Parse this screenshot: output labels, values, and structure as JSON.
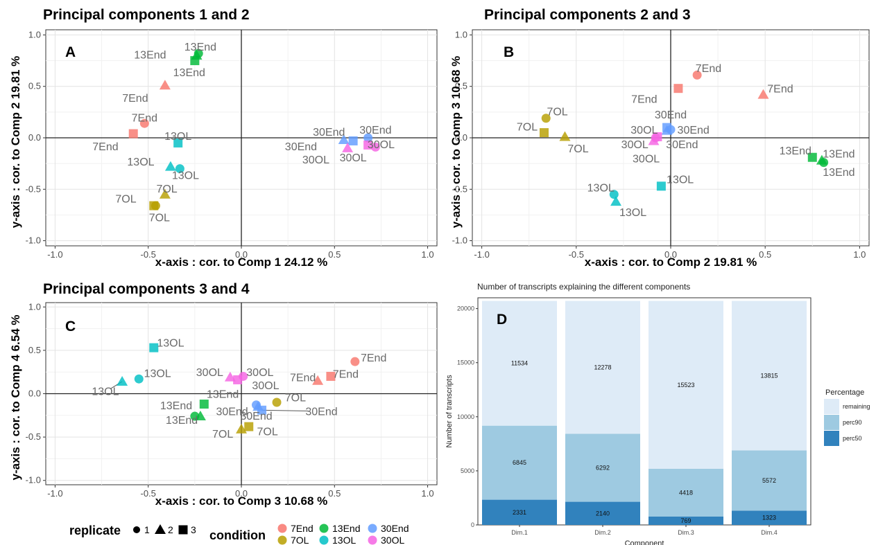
{
  "colors": {
    "7End": "#F8766D",
    "7OL": "#B79F00",
    "13End": "#00BA38",
    "13OL": "#00BFC4",
    "30End": "#619CFF",
    "30OL": "#F564E3",
    "perc50": "#3182BD",
    "perc90": "#9ECAE1",
    "remaining": "#DEEBF7"
  },
  "chart_data": [
    {
      "type": "scatter",
      "panel": "A",
      "title": "Principal components 1 and 2",
      "xlabel": "x-axis : cor. to Comp  1   24.12 %",
      "ylabel": "y-axis : cor. to Comp  2   19.81 %",
      "xlim": [
        -1.05,
        1.05
      ],
      "ylim": [
        -1.05,
        1.05
      ],
      "xticks": [
        "-1.0",
        "-0.5",
        "0.0",
        "0.5",
        "1.0"
      ],
      "yticks": [
        "-1.0",
        "-0.5",
        "0.0",
        "0.5",
        "1.0"
      ],
      "grid": true,
      "points": [
        {
          "condition": "7End",
          "replicate": 1,
          "x": -0.52,
          "y": 0.14
        },
        {
          "condition": "7End",
          "replicate": 2,
          "x": -0.41,
          "y": 0.51
        },
        {
          "condition": "7End",
          "replicate": 3,
          "x": -0.58,
          "y": 0.04
        },
        {
          "condition": "13End",
          "replicate": 1,
          "x": -0.23,
          "y": 0.82
        },
        {
          "condition": "13End",
          "replicate": 2,
          "x": -0.24,
          "y": 0.8
        },
        {
          "condition": "13End",
          "replicate": 3,
          "x": -0.25,
          "y": 0.75
        },
        {
          "condition": "13OL",
          "replicate": 1,
          "x": -0.33,
          "y": -0.3
        },
        {
          "condition": "13OL",
          "replicate": 2,
          "x": -0.38,
          "y": -0.28
        },
        {
          "condition": "13OL",
          "replicate": 3,
          "x": -0.34,
          "y": -0.05
        },
        {
          "condition": "7OL",
          "replicate": 1,
          "x": -0.46,
          "y": -0.66
        },
        {
          "condition": "7OL",
          "replicate": 2,
          "x": -0.41,
          "y": -0.55
        },
        {
          "condition": "7OL",
          "replicate": 3,
          "x": -0.47,
          "y": -0.66
        },
        {
          "condition": "30End",
          "replicate": 1,
          "x": 0.68,
          "y": 0.0
        },
        {
          "condition": "30End",
          "replicate": 2,
          "x": 0.55,
          "y": -0.02
        },
        {
          "condition": "30End",
          "replicate": 3,
          "x": 0.6,
          "y": -0.03
        },
        {
          "condition": "30OL",
          "replicate": 1,
          "x": 0.72,
          "y": -0.09
        },
        {
          "condition": "30OL",
          "replicate": 2,
          "x": 0.57,
          "y": -0.1
        },
        {
          "condition": "30OL",
          "replicate": 3,
          "x": 0.68,
          "y": -0.07
        }
      ],
      "labels": [
        {
          "text": "13End",
          "x": -0.22,
          "y": 0.89
        },
        {
          "text": "13End",
          "x": -0.49,
          "y": 0.81
        },
        {
          "text": "13End",
          "x": -0.28,
          "y": 0.64
        },
        {
          "text": "7End",
          "x": -0.57,
          "y": 0.39
        },
        {
          "text": "7End",
          "x": -0.52,
          "y": 0.2
        },
        {
          "text": "7End",
          "x": -0.73,
          "y": -0.08
        },
        {
          "text": "13OL",
          "x": -0.34,
          "y": 0.02
        },
        {
          "text": "13OL",
          "x": -0.54,
          "y": -0.23
        },
        {
          "text": "13OL",
          "x": -0.3,
          "y": -0.36
        },
        {
          "text": "7OL",
          "x": -0.4,
          "y": -0.49
        },
        {
          "text": "7OL",
          "x": -0.62,
          "y": -0.59
        },
        {
          "text": "7OL",
          "x": -0.44,
          "y": -0.77
        },
        {
          "text": "30End",
          "x": 0.47,
          "y": 0.06
        },
        {
          "text": "30End",
          "x": 0.72,
          "y": 0.08
        },
        {
          "text": "30End",
          "x": 0.32,
          "y": -0.08
        },
        {
          "text": "30OL",
          "x": 0.75,
          "y": -0.06
        },
        {
          "text": "30OL",
          "x": 0.4,
          "y": -0.21
        },
        {
          "text": "30OL",
          "x": 0.6,
          "y": -0.19
        }
      ]
    },
    {
      "type": "scatter",
      "panel": "B",
      "title": "Principal components 2 and 3",
      "xlabel": "x-axis : cor. to Comp  2   19.81 %",
      "ylabel": "y-axis : cor. to Comp  3   10.68 %",
      "xlim": [
        -1.05,
        1.05
      ],
      "ylim": [
        -1.05,
        1.05
      ],
      "xticks": [
        "-1.0",
        "-0.5",
        "0.0",
        "0.5",
        "1.0"
      ],
      "yticks": [
        "-1.0",
        "-0.5",
        "0.0",
        "0.5",
        "1.0"
      ],
      "grid": true,
      "points": [
        {
          "condition": "7End",
          "replicate": 1,
          "x": 0.14,
          "y": 0.61
        },
        {
          "condition": "7End",
          "replicate": 2,
          "x": 0.49,
          "y": 0.42
        },
        {
          "condition": "7End",
          "replicate": 3,
          "x": 0.04,
          "y": 0.48
        },
        {
          "condition": "7OL",
          "replicate": 1,
          "x": -0.66,
          "y": 0.19
        },
        {
          "condition": "7OL",
          "replicate": 2,
          "x": -0.56,
          "y": 0.01
        },
        {
          "condition": "7OL",
          "replicate": 3,
          "x": -0.67,
          "y": 0.05
        },
        {
          "condition": "30End",
          "replicate": 1,
          "x": 0.0,
          "y": 0.08
        },
        {
          "condition": "30End",
          "replicate": 2,
          "x": -0.02,
          "y": 0.07
        },
        {
          "condition": "30End",
          "replicate": 3,
          "x": -0.02,
          "y": 0.1
        },
        {
          "condition": "30OL",
          "replicate": 1,
          "x": -0.08,
          "y": 0.0
        },
        {
          "condition": "30OL",
          "replicate": 2,
          "x": -0.09,
          "y": -0.03
        },
        {
          "condition": "30OL",
          "replicate": 3,
          "x": -0.07,
          "y": 0.01
        },
        {
          "condition": "13End",
          "replicate": 1,
          "x": 0.81,
          "y": -0.24
        },
        {
          "condition": "13End",
          "replicate": 2,
          "x": 0.8,
          "y": -0.22
        },
        {
          "condition": "13End",
          "replicate": 3,
          "x": 0.75,
          "y": -0.19
        },
        {
          "condition": "13OL",
          "replicate": 1,
          "x": -0.3,
          "y": -0.55
        },
        {
          "condition": "13OL",
          "replicate": 2,
          "x": -0.29,
          "y": -0.62
        },
        {
          "condition": "13OL",
          "replicate": 3,
          "x": -0.05,
          "y": -0.47
        }
      ],
      "labels": [
        {
          "text": "7End",
          "x": 0.2,
          "y": 0.68
        },
        {
          "text": "7End",
          "x": 0.58,
          "y": 0.48
        },
        {
          "text": "7End",
          "x": -0.14,
          "y": 0.38
        },
        {
          "text": "7OL",
          "x": -0.6,
          "y": 0.26
        },
        {
          "text": "7OL",
          "x": -0.76,
          "y": 0.11
        },
        {
          "text": "7OL",
          "x": -0.49,
          "y": -0.1
        },
        {
          "text": "30End",
          "x": 0.0,
          "y": 0.23
        },
        {
          "text": "30OL",
          "x": -0.14,
          "y": 0.08
        },
        {
          "text": "30End",
          "x": 0.12,
          "y": 0.08
        },
        {
          "text": "30OL",
          "x": -0.19,
          "y": -0.06
        },
        {
          "text": "30End",
          "x": 0.06,
          "y": -0.06
        },
        {
          "text": "30OL",
          "x": -0.13,
          "y": -0.2
        },
        {
          "text": "13End",
          "x": 0.66,
          "y": -0.12
        },
        {
          "text": "13End",
          "x": 0.89,
          "y": -0.15
        },
        {
          "text": "13End",
          "x": 0.89,
          "y": -0.33
        },
        {
          "text": "13OL",
          "x": -0.37,
          "y": -0.48
        },
        {
          "text": "13OL",
          "x": 0.05,
          "y": -0.4
        },
        {
          "text": "13OL",
          "x": -0.2,
          "y": -0.72
        }
      ]
    },
    {
      "type": "scatter",
      "panel": "C",
      "title": "Principal components 3 and 4",
      "xlabel": "x-axis : cor. to Comp  3   10.68 %",
      "ylabel": "y-axis : cor. to Comp  4   6.54 %",
      "xlim": [
        -1.05,
        1.05
      ],
      "ylim": [
        -1.05,
        1.05
      ],
      "xticks": [
        "-1.0",
        "-0.5",
        "0.0",
        "0.5",
        "1.0"
      ],
      "yticks": [
        "-1.0",
        "-0.5",
        "0.0",
        "0.5",
        "1.0"
      ],
      "grid": true,
      "points": [
        {
          "condition": "13OL",
          "replicate": 1,
          "x": -0.55,
          "y": 0.17
        },
        {
          "condition": "13OL",
          "replicate": 2,
          "x": -0.64,
          "y": 0.14
        },
        {
          "condition": "13OL",
          "replicate": 3,
          "x": -0.47,
          "y": 0.53
        },
        {
          "condition": "7End",
          "replicate": 1,
          "x": 0.61,
          "y": 0.37
        },
        {
          "condition": "7End",
          "replicate": 2,
          "x": 0.41,
          "y": 0.15
        },
        {
          "condition": "7End",
          "replicate": 3,
          "x": 0.48,
          "y": 0.2
        },
        {
          "condition": "30OL",
          "replicate": 1,
          "x": 0.01,
          "y": 0.2
        },
        {
          "condition": "30OL",
          "replicate": 2,
          "x": -0.06,
          "y": 0.19
        },
        {
          "condition": "30OL",
          "replicate": 3,
          "x": -0.02,
          "y": 0.16
        },
        {
          "condition": "13End",
          "replicate": 1,
          "x": -0.25,
          "y": -0.26
        },
        {
          "condition": "13End",
          "replicate": 2,
          "x": -0.22,
          "y": -0.26
        },
        {
          "condition": "13End",
          "replicate": 3,
          "x": -0.2,
          "y": -0.12
        },
        {
          "condition": "30End",
          "replicate": 1,
          "x": 0.08,
          "y": -0.13
        },
        {
          "condition": "30End",
          "replicate": 2,
          "x": 0.09,
          "y": -0.15
        },
        {
          "condition": "30End",
          "replicate": 3,
          "x": 0.11,
          "y": -0.19
        },
        {
          "condition": "7OL",
          "replicate": 1,
          "x": 0.19,
          "y": -0.1
        },
        {
          "condition": "7OL",
          "replicate": 2,
          "x": 0.0,
          "y": -0.41
        },
        {
          "condition": "7OL",
          "replicate": 3,
          "x": 0.04,
          "y": -0.38
        }
      ],
      "labels": [
        {
          "text": "13OL",
          "x": -0.38,
          "y": 0.59
        },
        {
          "text": "13OL",
          "x": -0.45,
          "y": 0.24
        },
        {
          "text": "13OL",
          "x": -0.73,
          "y": 0.03
        },
        {
          "text": "7End",
          "x": 0.71,
          "y": 0.42
        },
        {
          "text": "7End",
          "x": 0.56,
          "y": 0.23
        },
        {
          "text": "7End",
          "x": 0.33,
          "y": 0.19
        },
        {
          "text": "30OL",
          "x": -0.17,
          "y": 0.25
        },
        {
          "text": "30OL",
          "x": 0.1,
          "y": 0.25
        },
        {
          "text": "30OL",
          "x": 0.13,
          "y": 0.1
        },
        {
          "text": "13End",
          "x": -0.35,
          "y": -0.13
        },
        {
          "text": "13End",
          "x": -0.1,
          "y": 0.0
        },
        {
          "text": "13End",
          "x": -0.32,
          "y": -0.3
        },
        {
          "text": "30End",
          "x": -0.05,
          "y": -0.2
        },
        {
          "text": "30End",
          "x": 0.08,
          "y": -0.25
        },
        {
          "text": "30End",
          "x": 0.43,
          "y": -0.2
        },
        {
          "text": "7OL",
          "x": 0.29,
          "y": -0.04
        },
        {
          "text": "7OL",
          "x": -0.1,
          "y": -0.46
        },
        {
          "text": "7OL",
          "x": 0.14,
          "y": -0.43
        }
      ],
      "leaders": [
        {
          "x1": -0.64,
          "y1": 0.14,
          "x2": -0.7,
          "y2": 0.06
        },
        {
          "x1": 0.11,
          "y1": -0.19,
          "x2": 0.36,
          "y2": -0.2
        }
      ]
    },
    {
      "type": "bar",
      "stacked": true,
      "panel": "D",
      "title": "Number of transcripts explaining the different components",
      "xlabel": "Component",
      "ylabel": "Number of transcripts",
      "categories": [
        "Dim.1",
        "Dim.2",
        "Dim.3",
        "Dim.4"
      ],
      "ylim": [
        0,
        21000
      ],
      "yticks": [
        0,
        5000,
        10000,
        15000,
        20000
      ],
      "series": [
        {
          "name": "perc50",
          "values": [
            2331,
            2140,
            769,
            1323
          ]
        },
        {
          "name": "perc90",
          "values": [
            6845,
            6292,
            4418,
            5572
          ]
        },
        {
          "name": "remaining",
          "values": [
            11534,
            12278,
            15523,
            13815
          ]
        }
      ],
      "legend": {
        "title": "Percentage",
        "position": "right",
        "items": [
          "remaining",
          "perc90",
          "perc50"
        ]
      }
    }
  ],
  "legend": {
    "replicate_title": "replicate",
    "replicates": [
      {
        "shape": "circle",
        "label": "1"
      },
      {
        "shape": "triangle",
        "label": "2"
      },
      {
        "shape": "square",
        "label": "3"
      }
    ],
    "condition_title": "condition",
    "conditions": [
      {
        "name": "7End",
        "color": "#F8766D"
      },
      {
        "name": "7OL",
        "color": "#B79F00"
      },
      {
        "name": "13End",
        "color": "#00BA38"
      },
      {
        "name": "13OL",
        "color": "#00BFC4"
      },
      {
        "name": "30End",
        "color": "#619CFF"
      },
      {
        "name": "30OL",
        "color": "#F564E3"
      }
    ]
  }
}
